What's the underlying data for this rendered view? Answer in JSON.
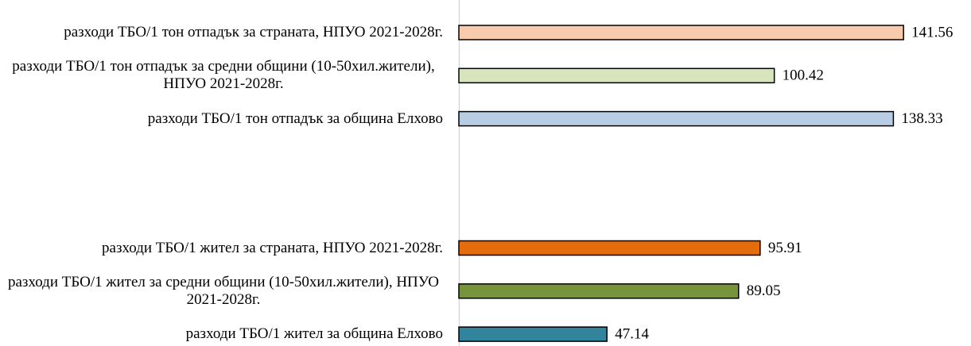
{
  "chart_data": {
    "type": "bar",
    "orientation": "horizontal",
    "categories": [
      "разходи ТБО/1 тон отпадък за страната, НПУО 2021-2028г.",
      "разходи ТБО/1 тон отпадък за средни общини (10-50хил.жители), НПУО 2021-2028г.",
      "разходи ТБО/1 тон отпадък за община Елхово",
      null,
      null,
      "разходи ТБО/1 жител за страната, НПУО 2021-2028г.",
      "разходи ТБО/1 жител за средни общини (10-50хил.жители), НПУО 2021-2028г.",
      "разходи ТБО/1 жител за община Елхово"
    ],
    "values": [
      141.56,
      100.42,
      138.33,
      null,
      null,
      95.91,
      89.05,
      47.14
    ],
    "colors": [
      "#f8cbad",
      "#d8e4bc",
      "#b8cce4",
      null,
      null,
      "#e46c0a",
      "#77933c",
      "#31849b"
    ],
    "xlim": [
      0,
      150
    ]
  }
}
